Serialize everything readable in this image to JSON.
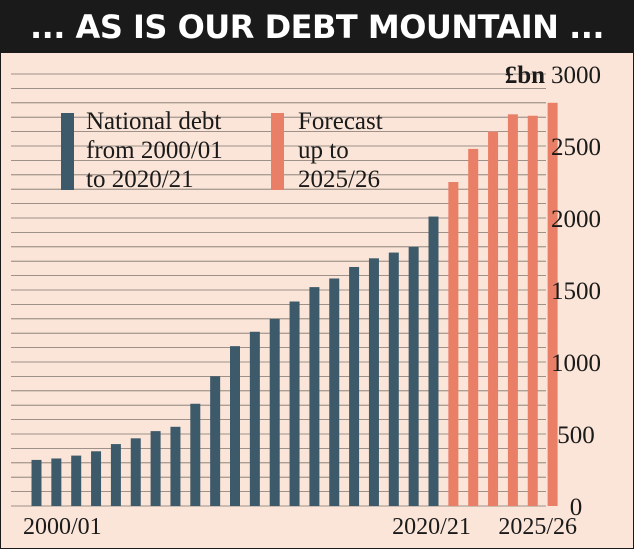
{
  "title": "... AS IS OUR DEBT MOUNTAIN ...",
  "colors": {
    "background": "#fbe5d8",
    "title_bar": "#1a1a1a",
    "title_text": "#ffffff",
    "actual_series": "#3d5a6a",
    "forecast_series": "#e97f66",
    "gridline": "#1a1a1a"
  },
  "chart_data": {
    "type": "bar",
    "title": "... AS IS OUR DEBT MOUNTAIN ...",
    "unit": "£bn",
    "ylim": [
      0,
      3000
    ],
    "yticks": [
      0,
      500,
      1000,
      1500,
      2000,
      2500,
      3000
    ],
    "grid": true,
    "axis_side": "right",
    "x_tick_labels": [
      {
        "index": 0,
        "label": "2000/01"
      },
      {
        "index": 20,
        "label": "2020/21"
      },
      {
        "index": 25,
        "label": "2025/26"
      }
    ],
    "series": [
      {
        "name": "National debt from 2000/01 to 2020/21",
        "legend_lines": [
          "National debt",
          "from 2000/01",
          "to 2020/21"
        ],
        "color": "#3d5a6a",
        "values": [
          320,
          330,
          350,
          380,
          430,
          470,
          520,
          550,
          710,
          900,
          1110,
          1210,
          1300,
          1420,
          1520,
          1580,
          1660,
          1720,
          1760,
          1800,
          2010
        ]
      },
      {
        "name": "Forecast up to 2025/26",
        "legend_lines": [
          "Forecast",
          "up to",
          "2025/26"
        ],
        "color": "#e97f66",
        "values": [
          2250,
          2480,
          2600,
          2720,
          2710,
          2800
        ]
      }
    ]
  }
}
